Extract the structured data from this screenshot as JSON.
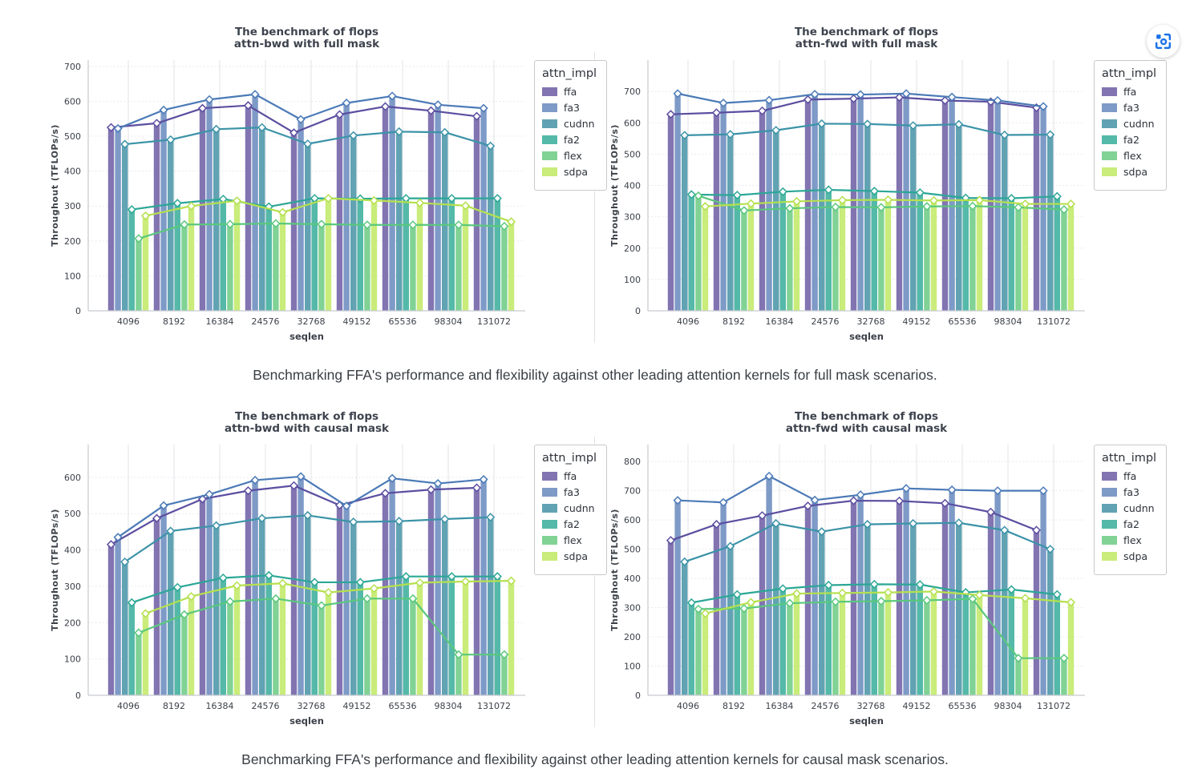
{
  "page": {
    "background": "#ffffff"
  },
  "capture_button": {
    "tooltip": "region-capture",
    "icon": "lens-capture-icon",
    "color": "#1a72e8"
  },
  "captions": [
    "Benchmarking FFA's performance and flexibility against other leading attention kernels for full mask scenarios.",
    "Benchmarking FFA's performance and flexibility against other leading attention kernels for causal mask scenarios."
  ],
  "legend": {
    "title": "attn_impl",
    "entries": [
      {
        "label": "ffa",
        "bar_color": "#8274b1",
        "line_color": "#5c4ea0"
      },
      {
        "label": "fa3",
        "bar_color": "#7e9ac7",
        "line_color": "#4b7ab7"
      },
      {
        "label": "cudnn",
        "bar_color": "#61a3b3",
        "line_color": "#3b93a7"
      },
      {
        "label": "fa2",
        "bar_color": "#54b9a9",
        "line_color": "#2ba796"
      },
      {
        "label": "flex",
        "bar_color": "#81d295",
        "line_color": "#5ac87d"
      },
      {
        "label": "sdpa",
        "bar_color": "#c9ec7a",
        "line_color": "#b5e04e"
      }
    ]
  },
  "style": {
    "grid_v_color": "#e2e3e7",
    "grid_h_color": "#e4e4ea",
    "spine_color": "#c6cad0",
    "tick_color": "#3c4149",
    "title_color": "#3d434d"
  },
  "chart_data": [
    {
      "type": "bar",
      "title_lines": [
        "The benchmark of flops",
        "attn-bwd with full mask"
      ],
      "xlabel": "seqlen",
      "ylabel": "Throughout (TFLOPs/s)",
      "categories": [
        "4096",
        "8192",
        "16384",
        "24576",
        "32768",
        "49152",
        "65536",
        "98304",
        "131072"
      ],
      "yticks": [
        0,
        100,
        200,
        300,
        400,
        500,
        600,
        700
      ],
      "ylim": [
        0,
        718
      ],
      "grid": true,
      "legend_position": "right",
      "series": [
        {
          "name": "ffa",
          "values": [
            525,
            537,
            580,
            588,
            510,
            562,
            585,
            573,
            557
          ]
        },
        {
          "name": "fa3",
          "values": [
            522,
            575,
            605,
            620,
            548,
            595,
            615,
            590,
            580
          ]
        },
        {
          "name": "cudnn",
          "values": [
            477,
            490,
            520,
            525,
            478,
            502,
            513,
            511,
            472
          ]
        },
        {
          "name": "fa2",
          "values": [
            290,
            308,
            320,
            298,
            322,
            321,
            322,
            322,
            322
          ]
        },
        {
          "name": "flex",
          "values": [
            207,
            247,
            248,
            250,
            248,
            246,
            246,
            246,
            242
          ]
        },
        {
          "name": "sdpa",
          "values": [
            272,
            300,
            315,
            282,
            322,
            316,
            309,
            301,
            255
          ]
        }
      ]
    },
    {
      "type": "bar",
      "title_lines": [
        "The benchmark of flops",
        "attn-fwd with full mask"
      ],
      "xlabel": "seqlen",
      "ylabel": "Throughout (TFLOPs/s)",
      "categories": [
        "4096",
        "8192",
        "16384",
        "24576",
        "32768",
        "49152",
        "65536",
        "98304",
        "131072"
      ],
      "yticks": [
        0,
        100,
        200,
        300,
        400,
        500,
        600,
        700
      ],
      "ylim": [
        0,
        800
      ],
      "grid": true,
      "legend_position": "right",
      "series": [
        {
          "name": "ffa",
          "values": [
            627,
            632,
            638,
            674,
            677,
            681,
            671,
            667,
            648
          ]
        },
        {
          "name": "fa3",
          "values": [
            693,
            663,
            672,
            691,
            690,
            693,
            682,
            671,
            652
          ]
        },
        {
          "name": "cudnn",
          "values": [
            560,
            563,
            576,
            597,
            596,
            591,
            595,
            561,
            562
          ]
        },
        {
          "name": "fa2",
          "values": [
            371,
            369,
            380,
            386,
            382,
            377,
            360,
            359,
            365
          ]
        },
        {
          "name": "flex",
          "values": [
            367,
            320,
            327,
            331,
            330,
            333,
            334,
            330,
            323
          ]
        },
        {
          "name": "sdpa",
          "values": [
            333,
            342,
            349,
            353,
            354,
            352,
            353,
            341,
            341
          ]
        }
      ]
    },
    {
      "type": "bar",
      "title_lines": [
        "The benchmark of flops",
        "attn-bwd with causal mask"
      ],
      "xlabel": "seqlen",
      "ylabel": "Throughout (TFLOPs/s)",
      "categories": [
        "4096",
        "8192",
        "16384",
        "24576",
        "32768",
        "49152",
        "65536",
        "98304",
        "131072"
      ],
      "yticks": [
        0,
        100,
        200,
        300,
        400,
        500,
        600
      ],
      "ylim": [
        0,
        690
      ],
      "grid": true,
      "legend_position": "right",
      "series": [
        {
          "name": "ffa",
          "values": [
            415,
            487,
            540,
            563,
            577,
            523,
            556,
            566,
            571
          ]
        },
        {
          "name": "fa3",
          "values": [
            435,
            522,
            553,
            592,
            602,
            521,
            597,
            583,
            594
          ]
        },
        {
          "name": "cudnn",
          "values": [
            367,
            452,
            467,
            487,
            495,
            477,
            479,
            485,
            490
          ]
        },
        {
          "name": "fa2",
          "values": [
            255,
            297,
            323,
            330,
            311,
            311,
            327,
            327,
            327
          ]
        },
        {
          "name": "flex",
          "values": [
            172,
            222,
            258,
            266,
            247,
            266,
            266,
            112,
            112
          ]
        },
        {
          "name": "sdpa",
          "values": [
            225,
            272,
            302,
            308,
            283,
            294,
            310,
            313,
            315
          ]
        }
      ]
    },
    {
      "type": "bar",
      "title_lines": [
        "The benchmark of flops",
        "attn-fwd with causal mask"
      ],
      "xlabel": "seqlen",
      "ylabel": "Throughout (TFLOPs/s)",
      "categories": [
        "4096",
        "8192",
        "16384",
        "24576",
        "32768",
        "49152",
        "65536",
        "98304",
        "131072"
      ],
      "yticks": [
        0,
        100,
        200,
        300,
        400,
        500,
        600,
        700,
        800
      ],
      "ylim": [
        0,
        858
      ],
      "grid": true,
      "legend_position": "right",
      "series": [
        {
          "name": "ffa",
          "values": [
            530,
            585,
            615,
            648,
            666,
            665,
            657,
            627,
            565
          ]
        },
        {
          "name": "fa3",
          "values": [
            667,
            660,
            750,
            668,
            686,
            708,
            703,
            700,
            700
          ]
        },
        {
          "name": "cudnn",
          "values": [
            457,
            510,
            588,
            560,
            585,
            588,
            590,
            565,
            500
          ]
        },
        {
          "name": "fa2",
          "values": [
            317,
            345,
            365,
            377,
            380,
            379,
            352,
            362,
            345
          ]
        },
        {
          "name": "flex",
          "values": [
            295,
            297,
            315,
            320,
            322,
            325,
            330,
            127,
            127
          ]
        },
        {
          "name": "sdpa",
          "values": [
            280,
            318,
            348,
            350,
            352,
            355,
            343,
            332,
            318
          ]
        }
      ]
    }
  ]
}
